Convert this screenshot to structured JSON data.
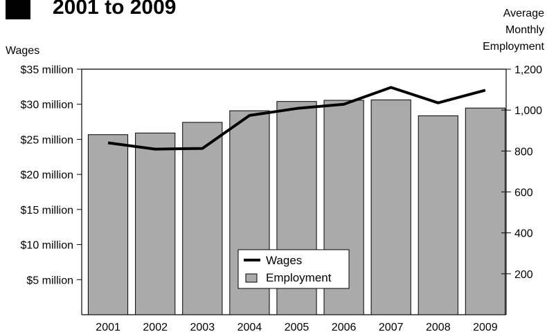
{
  "chart_data": {
    "type": "bar",
    "title": "2001 to 2009",
    "categories": [
      "2001",
      "2002",
      "2003",
      "2004",
      "2005",
      "2006",
      "2007",
      "2008",
      "2009"
    ],
    "series": [
      {
        "name": "Employment",
        "type": "bar",
        "axis": "right",
        "values": [
          880,
          888,
          940,
          997,
          1042,
          1048,
          1050,
          972,
          1010
        ]
      },
      {
        "name": "Wages",
        "type": "line",
        "axis": "left",
        "values": [
          24.5,
          23.6,
          23.7,
          28.4,
          29.4,
          30.0,
          32.4,
          30.2,
          32.0
        ]
      }
    ],
    "y_left": {
      "label": "Wages",
      "range": [
        0,
        35
      ],
      "ticks": [
        5,
        10,
        15,
        20,
        25,
        30,
        35
      ],
      "tick_labels": [
        "$5 million",
        "$10 million",
        "$15 million",
        "$20 million",
        "$25 million",
        "$30 million",
        "$35 million"
      ]
    },
    "y_right": {
      "label_lines": [
        "Average",
        "Monthly",
        "Employment"
      ],
      "range": [
        0,
        1200
      ],
      "ticks": [
        200,
        400,
        600,
        800,
        1000,
        1200
      ],
      "tick_labels": [
        "200",
        "400",
        "600",
        "800",
        "1,000",
        "1,200"
      ]
    },
    "legend": {
      "placement": "bottom-center",
      "entries": [
        {
          "label": "Wages",
          "kind": "line"
        },
        {
          "label": "Employment",
          "kind": "bar"
        }
      ]
    },
    "grid": false,
    "colors": {
      "bar_fill": "#aaaaaa",
      "bar_stroke": "#000000",
      "line": "#000000",
      "title_square": "#000000"
    }
  }
}
